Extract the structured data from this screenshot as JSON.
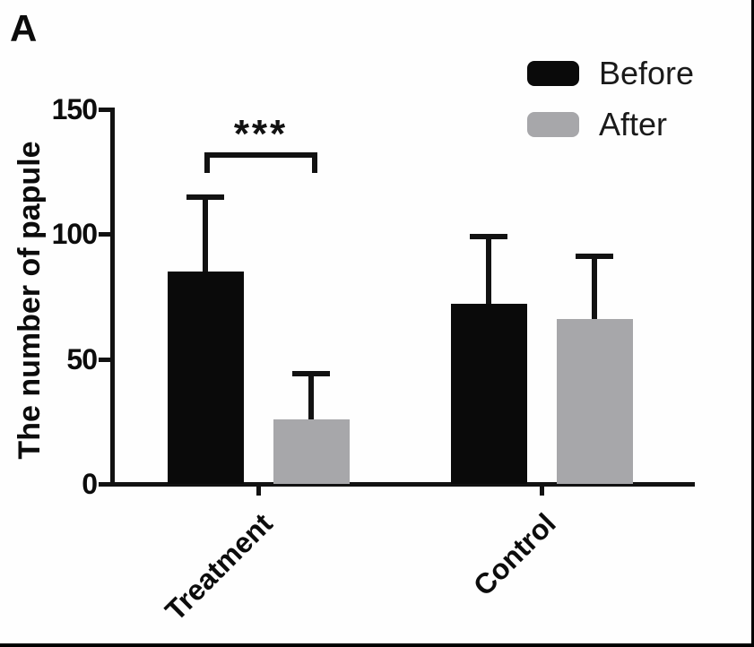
{
  "panel_label": "A",
  "colors": {
    "before": "#0a0a0a",
    "after": "#a7a7aa",
    "axis": "#121212",
    "background": "#fefefe"
  },
  "significance": {
    "label": "***"
  },
  "chart_data": {
    "type": "bar",
    "title": "",
    "xlabel": "",
    "ylabel": "The number of papule",
    "categories": [
      "Treatment",
      "Control"
    ],
    "series": [
      {
        "name": "Before",
        "color": "#0a0a0a",
        "values": [
          85,
          72
        ],
        "errors_plus": [
          30,
          27
        ]
      },
      {
        "name": "After",
        "color": "#a7a7aa",
        "values": [
          26,
          66
        ],
        "errors_plus": [
          18,
          25
        ]
      }
    ],
    "ylim": [
      0,
      150
    ],
    "yticks": [
      0,
      50,
      100,
      150
    ],
    "grid": false,
    "legend_position": "top-right",
    "error_bars": "upper SD only",
    "annotations": [
      {
        "type": "significance-bracket",
        "category": "Treatment",
        "between": [
          "Before",
          "After"
        ],
        "label": "***"
      }
    ]
  }
}
